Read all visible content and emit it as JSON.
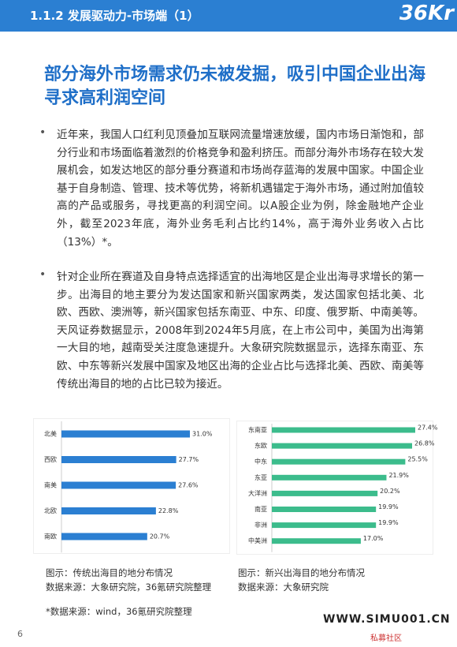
{
  "header": {
    "section": "1.1.2 发展驱动力-市场端（1）",
    "logo": "36Kr"
  },
  "title": "部分海外市场需求仍未被发掘，吸引中国企业出海寻求高利润空间",
  "bullets": [
    "近年来，我国人口红利见顶叠加互联网流量增速放缓，国内市场日渐饱和，部分行业和市场面临着激烈的价格竞争和盈利挤压。而部分海外市场存在较大发展机会，如发达地区的部分垂分赛道和市场尚存蓝海的发展中国家。中国企业基于自身制造、管理、技术等优势，将新机遇锚定于海外市场，通过附加值较高的产品或服务，寻找更高的利润空间。以A股企业为例，除金融地产企业外，截至2023年底，海外业务毛利占比约14%，高于海外业务收入占比（13%）*。",
    "针对企业所在赛道及自身特点选择适宜的出海地区是企业出海寻求增长的第一步。出海目的地主要分为发达国家和新兴国家两类，发达国家包括北美、北欧、西欧、澳洲等，新兴国家包括东南亚、中东、印度、俄罗斯、中南美等。天风证券数据显示，2008年到2024年5月底，在上市公司中，美国为出海第一大目的地，越南受关注度急速提升。大象研究院数据显示，选择东南亚、东欧、中东等新兴发展中国家及地区出海的企业占比与选择北美、西欧、南美等传统出海目的地的占比已较为接近。"
  ],
  "charts": [
    {
      "type": "bar",
      "orientation": "horizontal",
      "color": "#2b7fd2",
      "categories": [
        "北美",
        "西欧",
        "南美",
        "北欧",
        "南欧"
      ],
      "values": [
        31.0,
        27.7,
        27.6,
        22.8,
        20.7
      ],
      "value_labels": [
        "31.0%",
        "27.7%",
        "27.6%",
        "22.8%",
        "20.7%"
      ],
      "caption": "图示：传统出海目的地分布情况",
      "source": "数据来源：大象研究院，36氪研究院整理"
    },
    {
      "type": "bar",
      "orientation": "horizontal",
      "color": "#3cbc8c",
      "categories": [
        "东南亚",
        "东欧",
        "中东",
        "东亚",
        "大洋洲",
        "南亚",
        "非洲",
        "中美洲"
      ],
      "values": [
        27.4,
        26.8,
        25.5,
        21.9,
        20.2,
        19.9,
        19.9,
        17.0
      ],
      "value_labels": [
        "27.4%",
        "26.8%",
        "25.5%",
        "21.9%",
        "20.2%",
        "19.9%",
        "19.9%",
        "17.0%"
      ],
      "caption": "图示：新兴出海目的地分布情况",
      "source": "数据来源：大象研究院"
    }
  ],
  "footnote": "*数据来源：wind，36氪研究院整理",
  "page_number": "6",
  "watermark": {
    "url": "WWW.SIMU001.CN",
    "name": "私募社区"
  }
}
